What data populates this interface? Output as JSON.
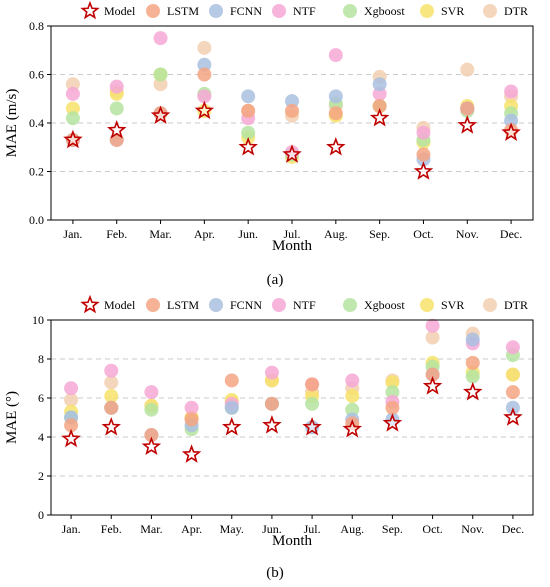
{
  "series_styles": [
    {
      "name": "Model",
      "color": "#ffffff",
      "stroke": "#c00000",
      "marker": "star"
    },
    {
      "name": "LSTM",
      "color": "#f4a582",
      "marker": "circle"
    },
    {
      "name": "FCNN",
      "color": "#a9bfe0",
      "marker": "circle"
    },
    {
      "name": "NTF",
      "color": "#f6a8d6",
      "marker": "circle"
    },
    {
      "name": "Xgboost",
      "color": "#b5e3a0",
      "marker": "circle"
    },
    {
      "name": "SVR",
      "color": "#f7e36a",
      "marker": "circle"
    },
    {
      "name": "DTR",
      "color": "#f2cfb0",
      "marker": "circle"
    }
  ],
  "chart_data": [
    {
      "type": "scatter",
      "panel_label": "(a)",
      "xlabel": "Month",
      "ylabel": "MAE (m/s)",
      "ylim": [
        0.0,
        0.8
      ],
      "yticks": [
        "0.0",
        "0.2",
        "0.4",
        "0.6",
        "0.8"
      ],
      "grid": "horizontal dashed",
      "legend": "top",
      "categories": [
        "Jan.",
        "Feb.",
        "Mar.",
        "Apr.",
        "Jun.",
        "Jul.",
        "Aug.",
        "Sep.",
        "Oct.",
        "Nov.",
        "Dec."
      ],
      "series": [
        {
          "name": "Model",
          "values": [
            0.33,
            0.37,
            0.43,
            0.45,
            0.3,
            0.27,
            0.3,
            0.42,
            0.2,
            0.39,
            0.36
          ]
        },
        {
          "name": "LSTM",
          "values": [
            0.33,
            0.33,
            0.44,
            0.6,
            0.45,
            0.45,
            0.44,
            0.47,
            0.27,
            0.46,
            0.37
          ]
        },
        {
          "name": "FCNN",
          "values": [
            0.33,
            0.33,
            0.44,
            0.64,
            0.51,
            0.49,
            0.51,
            0.56,
            0.25,
            0.46,
            0.41
          ]
        },
        {
          "name": "NTF",
          "values": [
            0.52,
            0.55,
            0.75,
            0.51,
            0.42,
            0.28,
            0.68,
            0.52,
            0.36,
            0.46,
            0.53
          ]
        },
        {
          "name": "Xgboost",
          "values": [
            0.42,
            0.46,
            0.6,
            0.52,
            0.36,
            0.27,
            0.48,
            0.47,
            0.33,
            0.45,
            0.44
          ]
        },
        {
          "name": "SVR",
          "values": [
            0.46,
            0.52,
            0.6,
            0.45,
            0.34,
            0.26,
            0.43,
            0.47,
            0.32,
            0.47,
            0.47
          ]
        },
        {
          "name": "DTR",
          "values": [
            0.56,
            0.53,
            0.56,
            0.71,
            0.45,
            0.43,
            0.47,
            0.59,
            0.38,
            0.62,
            0.51
          ]
        }
      ]
    },
    {
      "type": "scatter",
      "panel_label": "(b)",
      "xlabel": "Month",
      "ylabel": "MAE (°)",
      "ylim": [
        0,
        10
      ],
      "yticks": [
        "0",
        "2",
        "4",
        "6",
        "8",
        "10"
      ],
      "grid": "horizontal dashed",
      "legend": "top",
      "categories": [
        "Jan.",
        "Feb.",
        "Mar.",
        "Apr.",
        "May.",
        "Jun.",
        "Jul.",
        "Aug.",
        "Sep.",
        "Oct.",
        "Nov.",
        "Dec."
      ],
      "series": [
        {
          "name": "Model",
          "values": [
            3.9,
            4.5,
            3.5,
            3.1,
            4.5,
            4.6,
            4.5,
            4.4,
            4.7,
            6.6,
            6.3,
            5.0
          ]
        },
        {
          "name": "LSTM",
          "values": [
            4.6,
            5.5,
            4.1,
            4.9,
            6.9,
            5.7,
            6.7,
            4.7,
            5.5,
            7.2,
            7.8,
            6.3
          ]
        },
        {
          "name": "FCNN",
          "values": [
            5.0,
            5.5,
            4.1,
            4.6,
            5.5,
            5.7,
            4.5,
            4.9,
            4.9,
            7.2,
            9.0,
            5.5
          ]
        },
        {
          "name": "NTF",
          "values": [
            6.5,
            7.4,
            6.3,
            5.5,
            5.7,
            7.3,
            6.7,
            6.9,
            5.8,
            9.7,
            8.8,
            8.6
          ]
        },
        {
          "name": "Xgboost",
          "values": [
            5.0,
            5.5,
            5.4,
            4.4,
            5.5,
            5.7,
            5.7,
            5.4,
            6.3,
            7.6,
            7.1,
            8.2
          ]
        },
        {
          "name": "SVR",
          "values": [
            5.3,
            6.1,
            5.6,
            5.0,
            5.9,
            6.9,
            6.1,
            6.1,
            6.8,
            7.8,
            7.3,
            7.2
          ]
        },
        {
          "name": "DTR",
          "values": [
            5.9,
            6.8,
            5.6,
            5.0,
            5.8,
            6.9,
            6.3,
            6.5,
            6.9,
            9.1,
            9.3,
            7.2
          ]
        }
      ]
    }
  ]
}
